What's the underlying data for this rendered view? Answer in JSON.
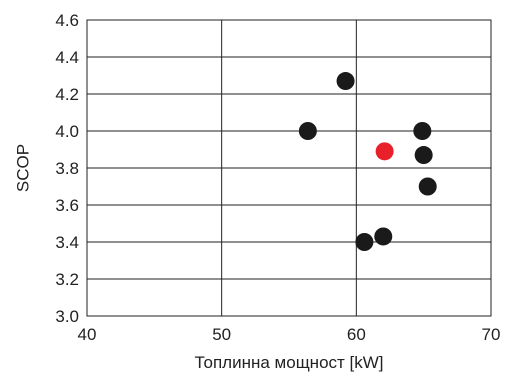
{
  "chart_data": {
    "type": "scatter",
    "title": "",
    "xlabel": "Топлинна мощност [kW]",
    "ylabel": "SCOP",
    "xlim": [
      40,
      70
    ],
    "ylim": [
      3.0,
      4.6
    ],
    "x_ticks": [
      "40",
      "50",
      "60",
      "70"
    ],
    "y_ticks": [
      "3.0",
      "3.2",
      "3.4",
      "3.6",
      "3.8",
      "4.0",
      "4.2",
      "4.4",
      "4.6"
    ],
    "grid": "vertical and horizontal major gridlines",
    "series": [
      {
        "color": "#1a1a1a",
        "points": [
          {
            "x": 56.4,
            "y": 4.0
          },
          {
            "x": 59.2,
            "y": 4.27
          },
          {
            "x": 64.9,
            "y": 4.0
          },
          {
            "x": 65.0,
            "y": 3.87
          },
          {
            "x": 65.3,
            "y": 3.7
          },
          {
            "x": 60.6,
            "y": 3.4
          },
          {
            "x": 62.0,
            "y": 3.43
          }
        ]
      },
      {
        "color": "#e8202a",
        "points": [
          {
            "x": 62.1,
            "y": 3.89
          }
        ]
      }
    ]
  }
}
